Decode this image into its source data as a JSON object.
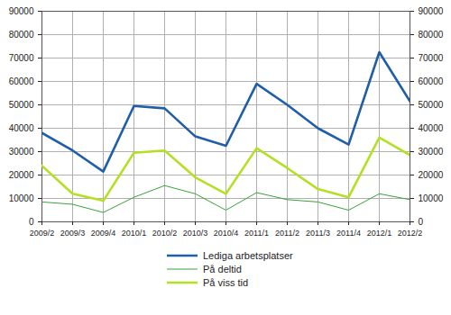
{
  "chart_data": {
    "type": "line",
    "categories": [
      "2009/2",
      "2009/3",
      "2009/4",
      "2010/1",
      "2010/2",
      "2010/3",
      "2010/4",
      "2011/1",
      "2011/2",
      "2011/3",
      "2011/4",
      "2012/1",
      "2012/2"
    ],
    "series": [
      {
        "name": "Lediga arbetsplatser",
        "color": "#1f5ea8",
        "values": [
          38000,
          30500,
          21500,
          49500,
          48500,
          36500,
          32500,
          59000,
          50000,
          40000,
          33000,
          72500,
          51500
        ]
      },
      {
        "name": "På deltid",
        "color": "#3aa13a",
        "values": [
          8500,
          7500,
          4000,
          10500,
          15500,
          12000,
          5000,
          12500,
          9500,
          8500,
          5000,
          12000,
          9500
        ]
      },
      {
        "name": "På viss tid",
        "color": "#b4e024",
        "values": [
          24000,
          12000,
          9000,
          29500,
          30500,
          19000,
          12000,
          31500,
          23000,
          14000,
          10500,
          36000,
          28500
        ]
      }
    ],
    "ylim": [
      0,
      90000
    ],
    "yticks": [
      0,
      10000,
      20000,
      30000,
      40000,
      50000,
      60000,
      70000,
      80000,
      90000
    ],
    "grid": true,
    "legend": "bottom"
  }
}
